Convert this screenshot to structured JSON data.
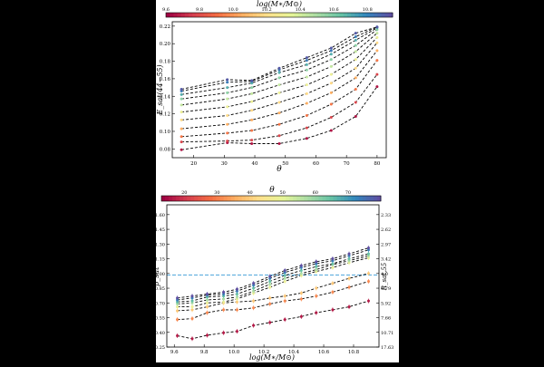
{
  "figure_bg": "#ffffff",
  "page_bg": "#000000",
  "colormap": [
    "#9e0142",
    "#d53e4f",
    "#f46d43",
    "#fdae61",
    "#fee08b",
    "#e6f598",
    "#abdda4",
    "#66c2a5",
    "#3288bd",
    "#5e4fa2"
  ],
  "chart_data": [
    {
      "type": "line",
      "colorbar": {
        "label": "log(M∗/M⊙)",
        "range": [
          9.6,
          10.95
        ],
        "ticks": [
          "9.6",
          "9.8",
          "10.0",
          "10.2",
          "10.4",
          "10.6",
          "10.8"
        ]
      },
      "xlabel": "θ",
      "ylabel": "E_sat(44−55)",
      "xlim": [
        13,
        83
      ],
      "ylim": [
        0.07,
        0.225
      ],
      "xticks": [
        "20",
        "30",
        "40",
        "50",
        "60",
        "70",
        "80"
      ],
      "yticks": [
        "0.08",
        "0.10",
        "0.12",
        "0.14",
        "0.16",
        "0.18",
        "0.20",
        "0.22"
      ],
      "x": [
        16,
        31,
        39,
        48,
        57,
        65,
        73,
        80
      ],
      "series": [
        {
          "mass": 9.65,
          "values": [
            0.079,
            0.087,
            0.086,
            0.086,
            0.092,
            0.101,
            0.117,
            0.151
          ]
        },
        {
          "mass": 9.78,
          "values": [
            0.088,
            0.089,
            0.09,
            0.095,
            0.104,
            0.116,
            0.133,
            0.165
          ]
        },
        {
          "mass": 9.92,
          "values": [
            0.094,
            0.098,
            0.101,
            0.108,
            0.118,
            0.131,
            0.148,
            0.181
          ]
        },
        {
          "mass": 10.05,
          "values": [
            0.103,
            0.108,
            0.113,
            0.121,
            0.132,
            0.144,
            0.161,
            0.192
          ]
        },
        {
          "mass": 10.18,
          "values": [
            0.113,
            0.118,
            0.124,
            0.133,
            0.143,
            0.155,
            0.172,
            0.201
          ]
        },
        {
          "mass": 10.31,
          "values": [
            0.122,
            0.128,
            0.134,
            0.144,
            0.153,
            0.165,
            0.182,
            0.207
          ]
        },
        {
          "mass": 10.44,
          "values": [
            0.13,
            0.137,
            0.143,
            0.153,
            0.162,
            0.174,
            0.191,
            0.212
          ]
        },
        {
          "mass": 10.57,
          "values": [
            0.137,
            0.144,
            0.15,
            0.161,
            0.17,
            0.182,
            0.198,
            0.216
          ]
        },
        {
          "mass": 10.7,
          "values": [
            0.142,
            0.15,
            0.155,
            0.167,
            0.176,
            0.188,
            0.204,
            0.218
          ]
        },
        {
          "mass": 10.83,
          "values": [
            0.146,
            0.156,
            0.157,
            0.17,
            0.181,
            0.192,
            0.208,
            0.219
          ]
        },
        {
          "mass": 10.92,
          "values": [
            0.148,
            0.159,
            0.158,
            0.172,
            0.184,
            0.195,
            0.212,
            0.219
          ]
        }
      ]
    },
    {
      "type": "line",
      "colorbar": {
        "label": "θ",
        "range": [
          13,
          80
        ],
        "ticks": [
          "20",
          "30",
          "40",
          "50",
          "60",
          "70"
        ]
      },
      "xlabel": "log(M∗/M⊙)",
      "ylabel": "β_sat",
      "right_label": "R_sat,55",
      "xlim": [
        9.55,
        10.97
      ],
      "ylim": [
        0.25,
        1.7
      ],
      "xticks": [
        "9.6",
        "9.8",
        "10.0",
        "10.2",
        "10.4",
        "10.6",
        "10.8"
      ],
      "yticks": [
        "0.25",
        "0.40",
        "0.55",
        "0.70",
        "0.85",
        "1.00",
        "1.15",
        "1.30",
        "1.45",
        "1.60"
      ],
      "right_ticks": [
        "2.33",
        "2.62",
        "2.97",
        "3.42",
        "4.0",
        "4.79",
        "5.92",
        "7.66",
        "10.71",
        "17.63"
      ],
      "reference_line": 0.985,
      "x": [
        9.62,
        9.72,
        9.82,
        9.93,
        10.02,
        10.13,
        10.24,
        10.34,
        10.45,
        10.55,
        10.66,
        10.77,
        10.9
      ],
      "series": [
        {
          "theta": 16,
          "values": [
            0.365,
            0.335,
            0.37,
            0.395,
            0.41,
            0.47,
            0.5,
            0.53,
            0.56,
            0.6,
            0.63,
            0.66,
            0.72
          ]
        },
        {
          "theta": 31,
          "values": [
            0.53,
            0.54,
            0.6,
            0.63,
            0.63,
            0.65,
            0.69,
            0.72,
            0.74,
            0.77,
            0.81,
            0.86,
            0.92
          ]
        },
        {
          "theta": 39,
          "values": [
            0.62,
            0.63,
            0.66,
            0.7,
            0.71,
            0.72,
            0.75,
            0.77,
            0.8,
            0.85,
            0.9,
            0.95,
            1.0
          ]
        },
        {
          "theta": 48,
          "values": [
            0.66,
            0.66,
            0.7,
            0.71,
            0.74,
            0.8,
            0.86,
            0.92,
            0.98,
            1.02,
            1.06,
            1.11,
            1.16
          ]
        },
        {
          "theta": 57,
          "values": [
            0.69,
            0.7,
            0.73,
            0.74,
            0.76,
            0.82,
            0.89,
            0.95,
            1.0,
            1.04,
            1.09,
            1.13,
            1.18
          ]
        },
        {
          "theta": 65,
          "values": [
            0.71,
            0.72,
            0.76,
            0.77,
            0.79,
            0.85,
            0.92,
            0.98,
            1.03,
            1.07,
            1.1,
            1.15,
            1.2
          ]
        },
        {
          "theta": 73,
          "values": [
            0.73,
            0.75,
            0.78,
            0.79,
            0.82,
            0.88,
            0.95,
            1.01,
            1.06,
            1.1,
            1.13,
            1.18,
            1.24
          ]
        },
        {
          "theta": 80,
          "values": [
            0.75,
            0.77,
            0.79,
            0.81,
            0.84,
            0.9,
            0.97,
            1.03,
            1.08,
            1.12,
            1.15,
            1.2,
            1.26
          ]
        }
      ]
    }
  ]
}
